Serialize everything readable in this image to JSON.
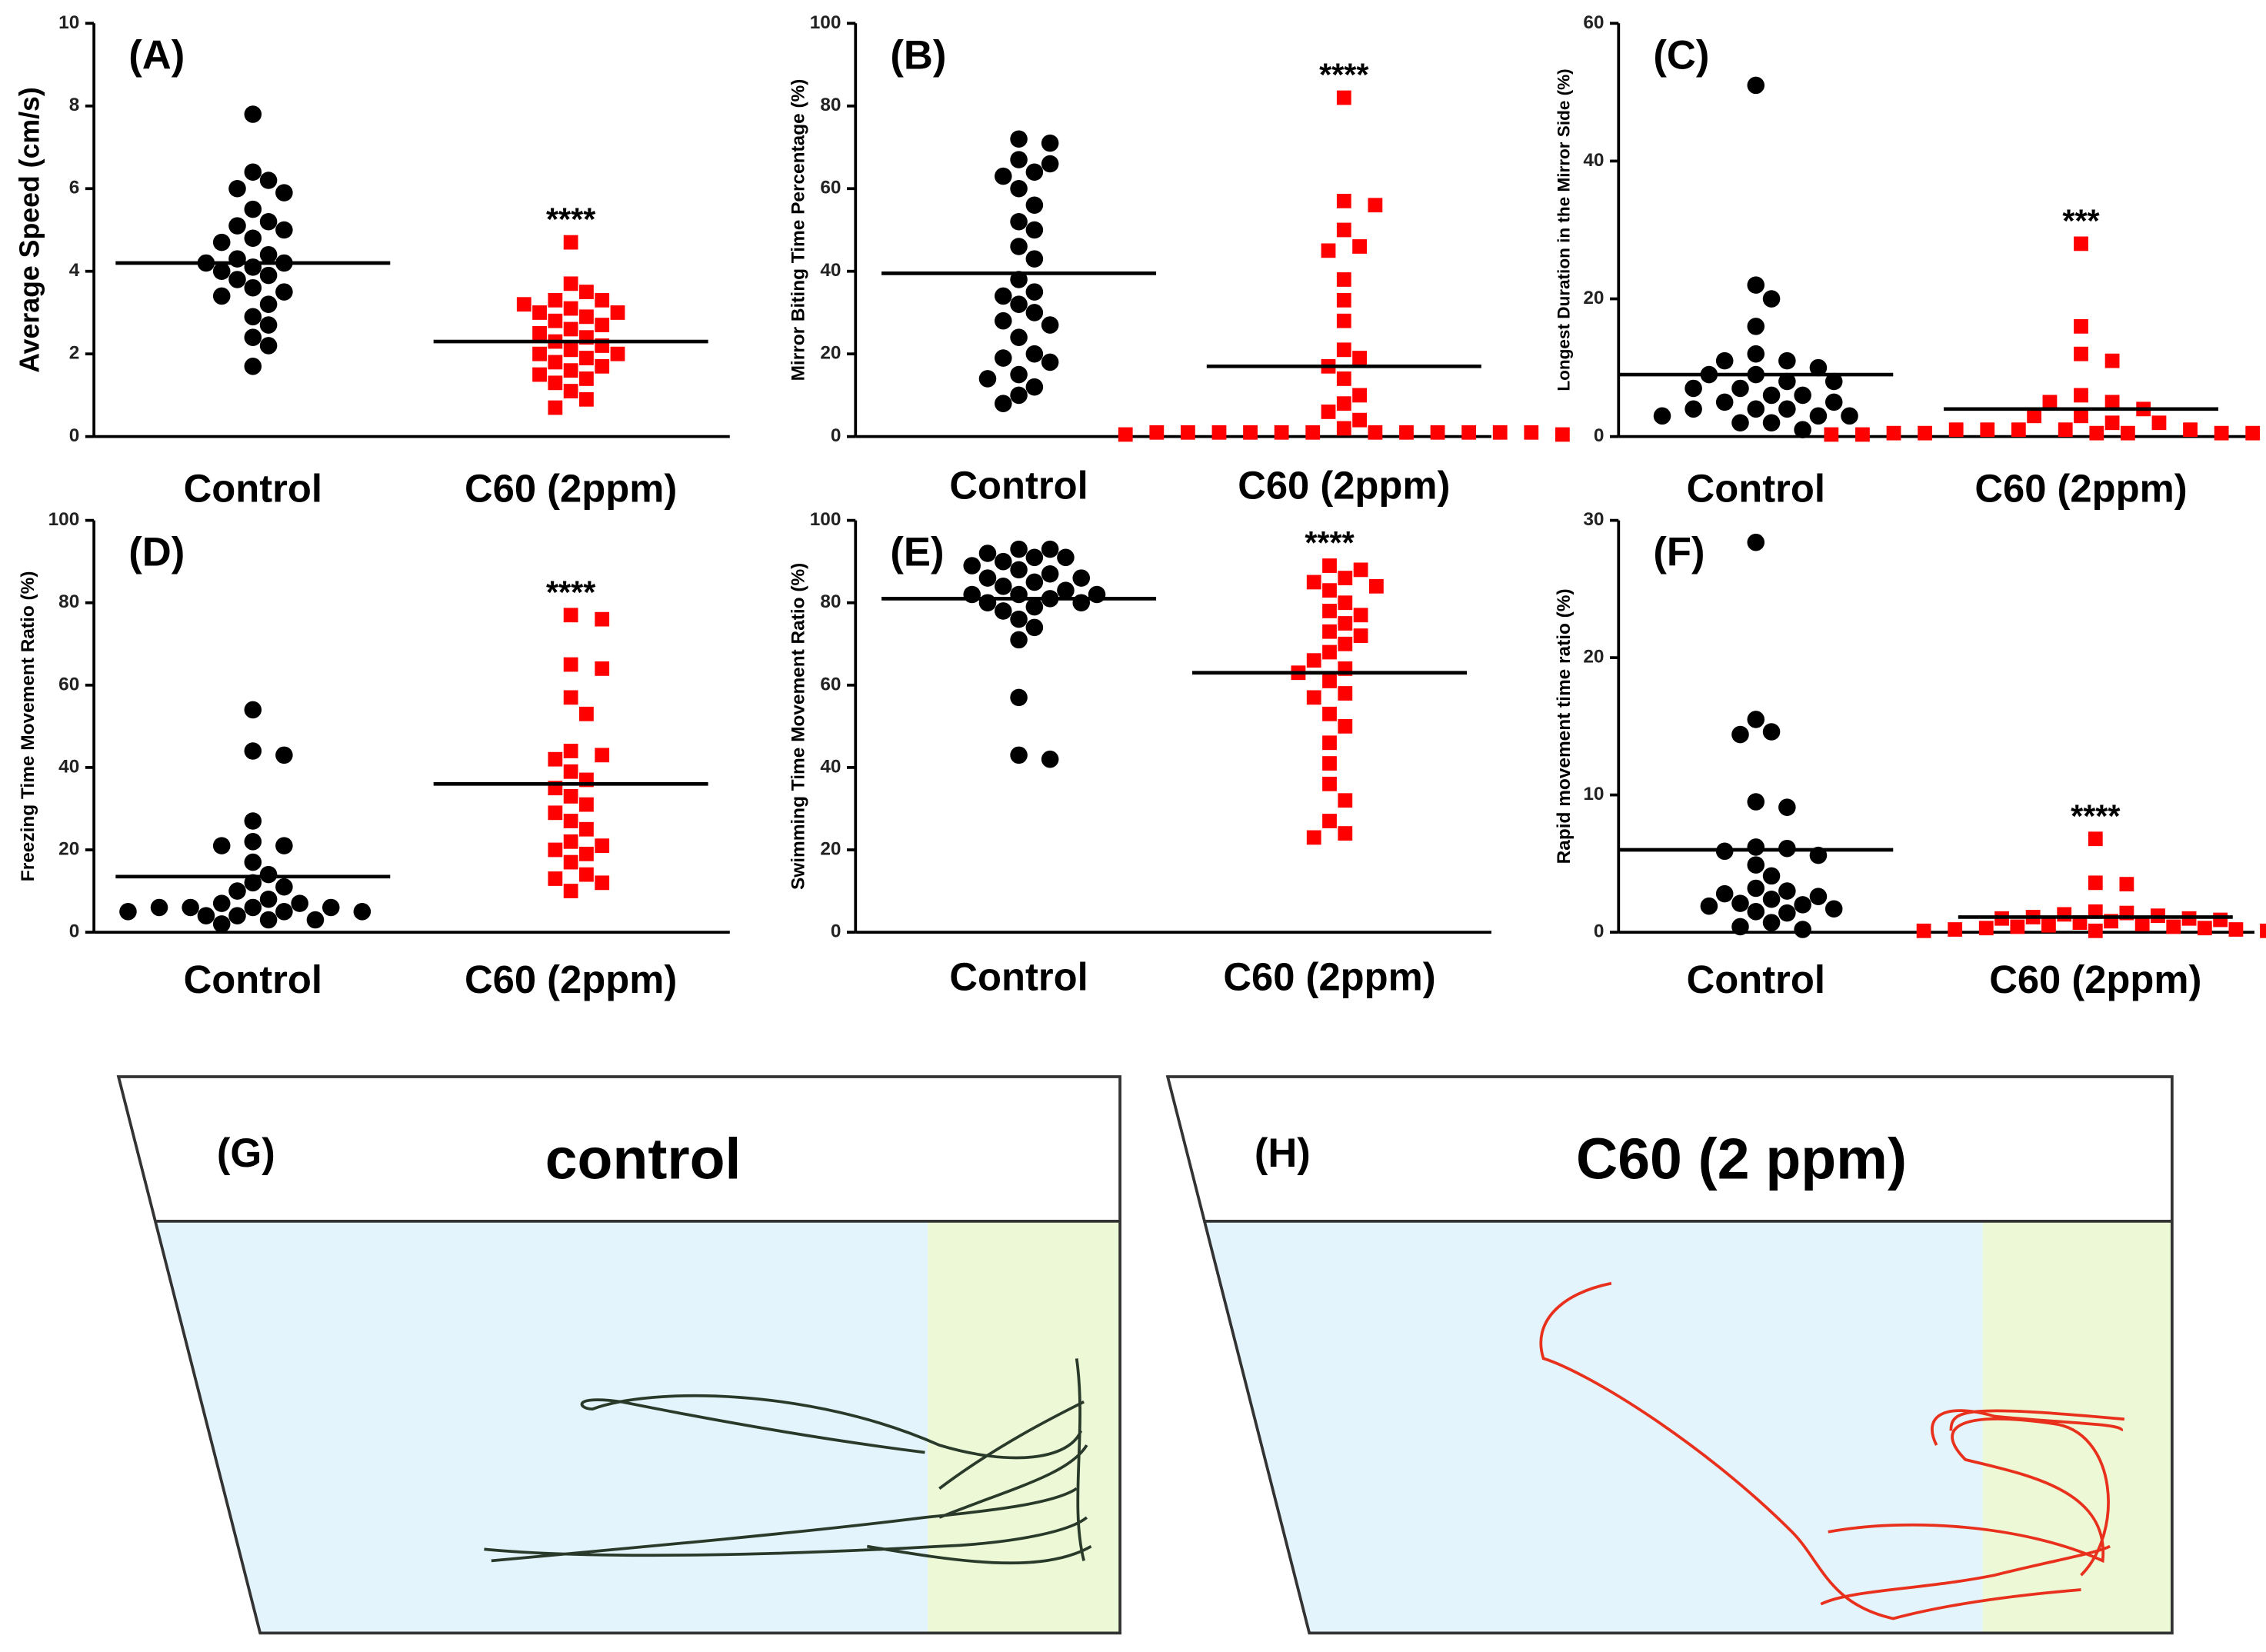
{
  "chart_data": [
    {
      "type": "dot",
      "label": "(A)",
      "ylabel": "Average Speed (cm/s)",
      "ylim": [
        0,
        10
      ],
      "yticks": [
        0,
        2,
        4,
        6,
        8,
        10
      ],
      "series": [
        {
          "name": "Control",
          "color": "#000000",
          "marker": "circle",
          "mean": 4.2,
          "values": [
            7.8,
            6.4,
            6.2,
            6.0,
            5.9,
            5.5,
            5.2,
            5.1,
            5.0,
            4.8,
            4.7,
            4.4,
            4.3,
            4.2,
            4.2,
            4.1,
            4.0,
            3.9,
            3.8,
            3.6,
            3.5,
            3.4,
            3.2,
            2.9,
            2.7,
            2.4,
            2.2,
            1.7
          ]
        },
        {
          "name": "C60 (2ppm)",
          "color": "#ff0000",
          "marker": "square",
          "mean": 2.3,
          "annotation": "****",
          "values": [
            4.7,
            3.7,
            3.5,
            3.3,
            3.3,
            3.2,
            3.1,
            3.0,
            3.0,
            2.9,
            2.8,
            2.7,
            2.6,
            2.5,
            2.4,
            2.3,
            2.2,
            2.1,
            2.0,
            2.0,
            1.9,
            1.8,
            1.7,
            1.6,
            1.5,
            1.4,
            1.3,
            1.1,
            0.9,
            0.7
          ]
        }
      ]
    },
    {
      "type": "dot",
      "label": "(B)",
      "ylabel": "Mirror Biting Time Percentage (%)",
      "ylim": [
        0,
        100
      ],
      "yticks": [
        0,
        20,
        40,
        60,
        80,
        100
      ],
      "series": [
        {
          "name": "Control",
          "color": "#000000",
          "marker": "circle",
          "mean": 39.5,
          "values": [
            72,
            71,
            67,
            66,
            64,
            63,
            60,
            56,
            52,
            50,
            46,
            43,
            38,
            35,
            34,
            32,
            30,
            28,
            27,
            24,
            20,
            19,
            18,
            15,
            14,
            12,
            10,
            8
          ]
        },
        {
          "name": "C60 (2ppm)",
          "color": "#ff0000",
          "marker": "square",
          "mean": 17,
          "annotation": "****",
          "values": [
            82,
            57,
            56,
            50,
            46,
            45,
            38,
            33,
            28,
            21,
            19,
            17,
            14,
            10,
            8,
            6,
            4,
            2,
            1,
            1,
            1,
            1,
            1,
            1,
            1,
            1,
            1,
            1,
            1,
            1,
            0.5,
            0.5
          ]
        }
      ]
    },
    {
      "type": "dot",
      "label": "(C)",
      "ylabel": "Longest  Duration in the Mirror  Side (%)",
      "ylim": [
        0,
        60
      ],
      "yticks": [
        0,
        20,
        40,
        60
      ],
      "series": [
        {
          "name": "Control",
          "color": "#000000",
          "marker": "circle",
          "mean": 9,
          "values": [
            51,
            22,
            20,
            16,
            12,
            11,
            11,
            10,
            9,
            9,
            8,
            8,
            7,
            7,
            6,
            6,
            5,
            5,
            4,
            4,
            4,
            3,
            3,
            3,
            2,
            2,
            1
          ]
        },
        {
          "name": "C60 (2ppm)",
          "color": "#ff0000",
          "marker": "square",
          "mean": 4,
          "annotation": "***",
          "values": [
            28,
            16,
            12,
            11,
            6,
            5,
            5,
            4,
            3,
            3,
            2,
            2,
            1,
            1,
            1,
            1,
            1,
            0.5,
            0.5,
            0.5,
            0.5,
            0.5,
            0.5,
            0.5,
            0.3,
            0.3,
            0.3
          ]
        }
      ]
    },
    {
      "type": "dot",
      "label": "(D)",
      "ylabel": "Freezing Time Movement Ratio (%)",
      "ylim": [
        0,
        100
      ],
      "yticks": [
        0,
        20,
        40,
        60,
        80,
        100
      ],
      "series": [
        {
          "name": "Control",
          "color": "#000000",
          "marker": "circle",
          "mean": 13.5,
          "values": [
            54,
            44,
            43,
            27,
            22,
            21,
            21,
            17,
            14,
            12,
            11,
            10,
            8,
            7,
            7,
            6,
            6,
            6,
            6,
            5,
            5,
            5,
            4,
            4,
            3,
            3,
            2
          ]
        },
        {
          "name": "C60 (2ppm)",
          "color": "#ff0000",
          "marker": "square",
          "mean": 36,
          "annotation": "****",
          "values": [
            77,
            76,
            65,
            64,
            57,
            53,
            44,
            43,
            42,
            39,
            37,
            35,
            33,
            31,
            29,
            27,
            25,
            22,
            21,
            20,
            19,
            17,
            14,
            13,
            12,
            10
          ]
        }
      ]
    },
    {
      "type": "dot",
      "label": "(E)",
      "ylabel": "Swimming Time Movement  Ratio (%)",
      "ylim": [
        0,
        100
      ],
      "yticks": [
        0,
        20,
        40,
        60,
        80,
        100
      ],
      "series": [
        {
          "name": "Control",
          "color": "#000000",
          "marker": "circle",
          "mean": 81,
          "values": [
            93,
            93,
            92,
            91,
            91,
            90,
            89,
            88,
            87,
            86,
            86,
            85,
            84,
            83,
            82,
            82,
            82,
            81,
            80,
            80,
            79,
            78,
            76,
            74,
            71,
            57,
            43,
            42
          ]
        },
        {
          "name": "C60 (2ppm)",
          "color": "#ff0000",
          "marker": "square",
          "mean": 63,
          "annotation": "****",
          "values": [
            89,
            88,
            86,
            85,
            84,
            83,
            80,
            78,
            77,
            75,
            73,
            72,
            70,
            68,
            66,
            64,
            63,
            61,
            58,
            57,
            53,
            50,
            46,
            41,
            36,
            32,
            27,
            24,
            23
          ]
        }
      ]
    },
    {
      "type": "dot",
      "label": "(F)",
      "ylabel": "Rapid movement time ratio (%)",
      "ylim": [
        0,
        30
      ],
      "yticks": [
        0,
        10,
        20,
        30
      ],
      "series": [
        {
          "name": "Control",
          "color": "#000000",
          "marker": "circle",
          "mean": 6,
          "values": [
            28.4,
            15.5,
            14.6,
            14.4,
            9.5,
            9.1,
            6.2,
            6.1,
            5.9,
            5.6,
            4.9,
            4.1,
            3.2,
            3.0,
            2.8,
            2.6,
            2.4,
            2.1,
            2.0,
            1.9,
            1.7,
            1.5,
            1.4,
            0.7,
            0.4,
            0.2
          ]
        },
        {
          "name": "C60 (2ppm)",
          "color": "#ff0000",
          "marker": "square",
          "mean": 1.1,
          "annotation": "****",
          "values": [
            6.8,
            3.6,
            3.5,
            1.5,
            1.4,
            1.3,
            1.2,
            1.1,
            1.0,
            1.0,
            0.9,
            0.8,
            0.7,
            0.6,
            0.5,
            0.4,
            0.4,
            0.3,
            0.3,
            0.2,
            0.2,
            0.1,
            0.1,
            0.1
          ]
        }
      ]
    }
  ],
  "panels": [
    {
      "label": "(G)",
      "title": "control"
    },
    {
      "label": "(H)",
      "title": "C60 (2 ppm)"
    }
  ]
}
